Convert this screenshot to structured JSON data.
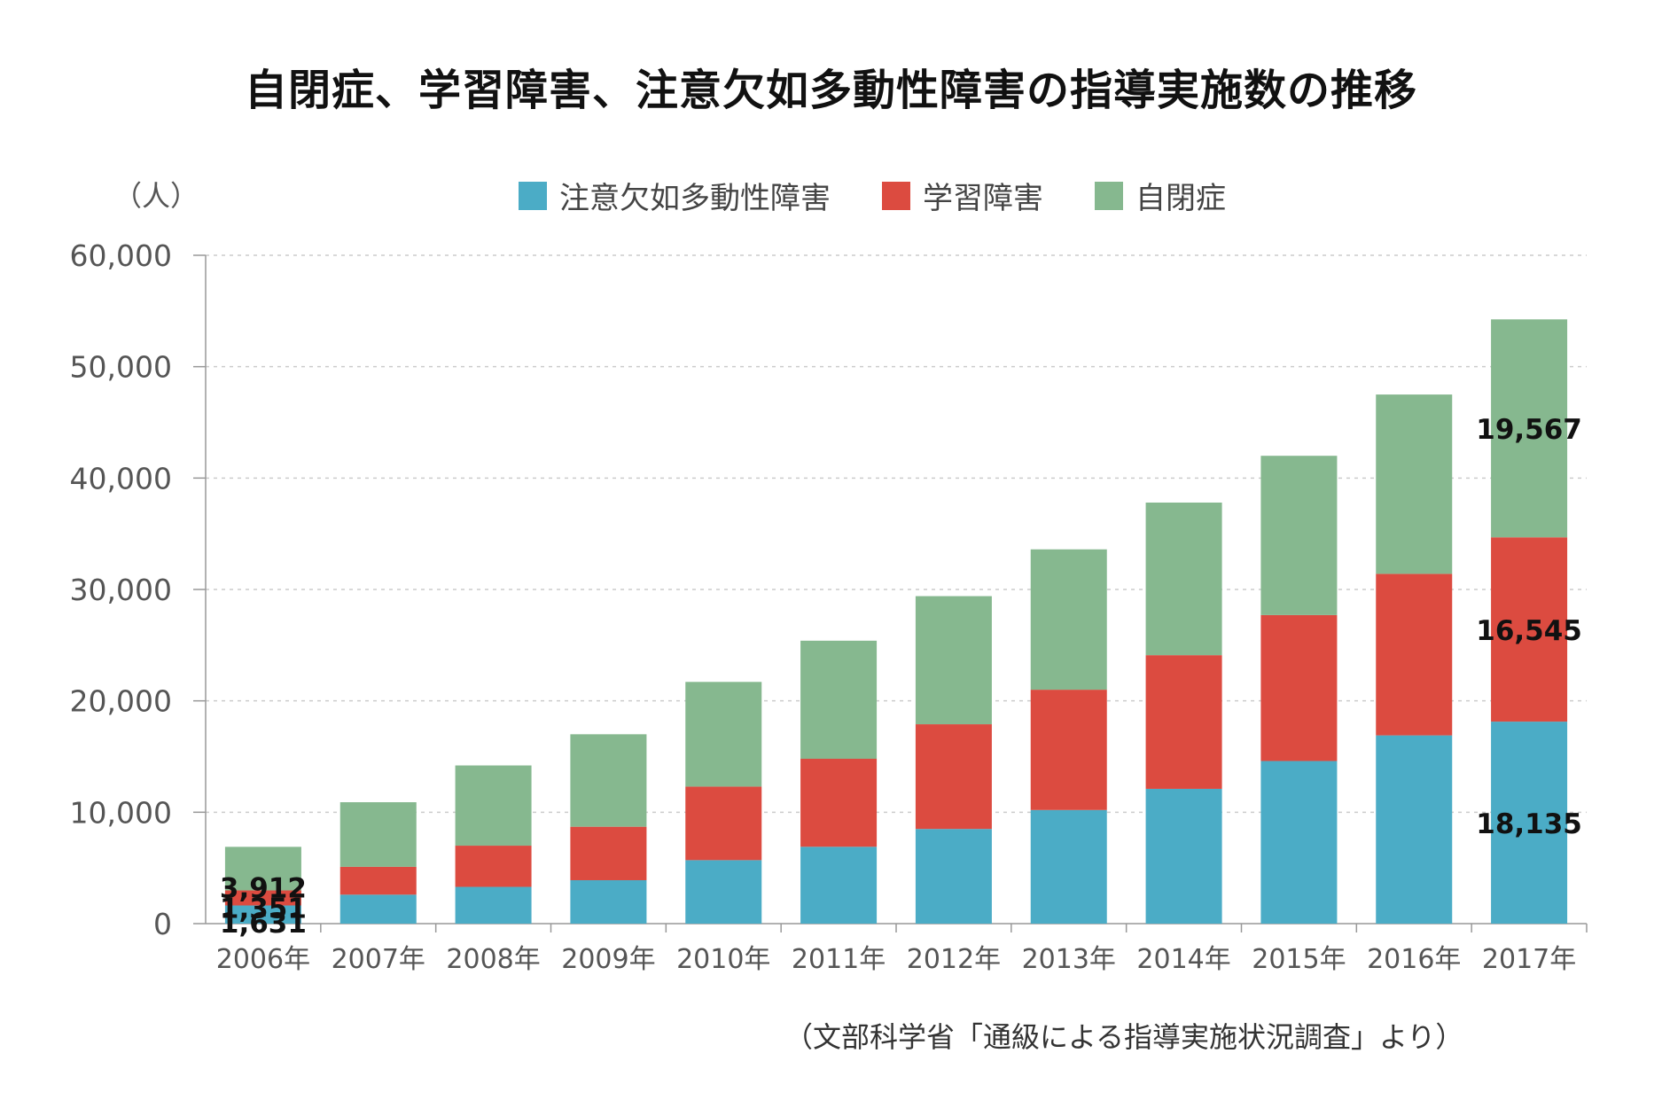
{
  "title": "自閉症、学習障害、注意欠如多動性障害の指導実施数の推移",
  "unit_label": "（人）",
  "source_note": "（文部科学省「通級による指導実施状況調査」より）",
  "colors": {
    "adhd": "#4bacc6",
    "ld": "#dc4b40",
    "autism": "#86b88f",
    "grid": "#cccccc",
    "axis": "#999999"
  },
  "chart_data": {
    "type": "bar",
    "stacked": true,
    "categories": [
      "2006年",
      "2007年",
      "2008年",
      "2009年",
      "2010年",
      "2011年",
      "2012年",
      "2013年",
      "2014年",
      "2015年",
      "2016年",
      "2017年"
    ],
    "series": [
      {
        "name": "注意欠如多動性障害",
        "color": "#4bacc6",
        "values": [
          1631,
          2600,
          3300,
          3900,
          5700,
          6900,
          8500,
          10200,
          12100,
          14600,
          16900,
          18135
        ]
      },
      {
        "name": "学習障害",
        "color": "#dc4b40",
        "values": [
          1351,
          2500,
          3700,
          4800,
          6600,
          7900,
          9400,
          10800,
          12000,
          13100,
          14500,
          16545
        ]
      },
      {
        "name": "自閉症",
        "color": "#86b88f",
        "values": [
          3912,
          5800,
          7200,
          8300,
          9400,
          10600,
          11500,
          12600,
          13700,
          14300,
          16100,
          19567
        ]
      }
    ],
    "ylim": [
      0,
      60000
    ],
    "yticks": [
      "0",
      "10,000",
      "20,000",
      "30,000",
      "40,000",
      "50,000",
      "60,000"
    ],
    "grid": true,
    "legend_position": "top",
    "data_labels": [
      {
        "category": 0,
        "series": 0,
        "text": "1,631"
      },
      {
        "category": 0,
        "series": 1,
        "text": "1,351"
      },
      {
        "category": 0,
        "series": 2,
        "text": "3,912"
      },
      {
        "category": 11,
        "series": 0,
        "text": "18,135"
      },
      {
        "category": 11,
        "series": 1,
        "text": "16,545"
      },
      {
        "category": 11,
        "series": 2,
        "text": "19,567"
      }
    ]
  }
}
